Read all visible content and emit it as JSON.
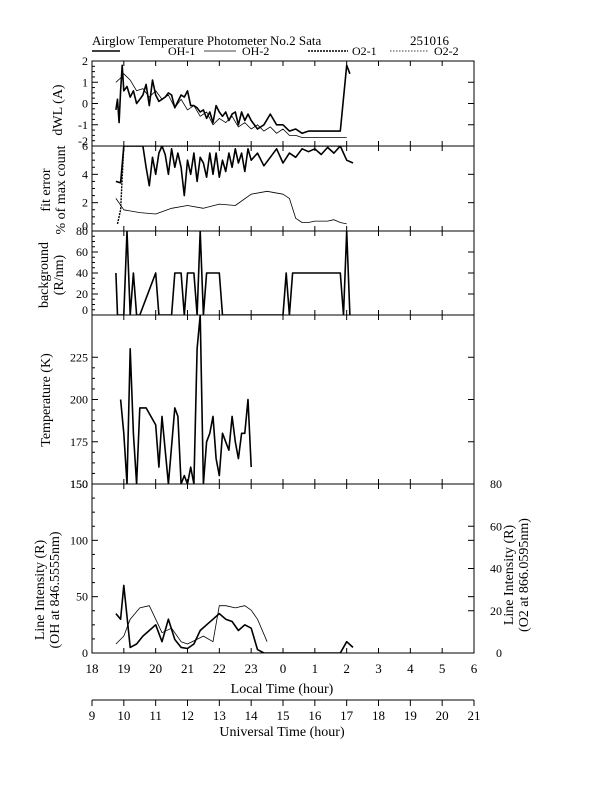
{
  "header": {
    "title": "Airglow Temperature Photometer No.2  Sata",
    "date_code": "251016",
    "legend": [
      {
        "label": "OH-1",
        "style": "solid-bold"
      },
      {
        "label": "OH-2",
        "style": "solid-thin"
      },
      {
        "label": "O2-1",
        "style": "dotted-bold"
      },
      {
        "label": "O2-2",
        "style": "dotted-thin"
      }
    ]
  },
  "chart_data": [
    {
      "type": "line",
      "ylabel": "dWL (A)",
      "ylim": [
        -2,
        2
      ],
      "yticks": [
        "-2",
        "-1",
        "0",
        "1",
        "2"
      ],
      "series": [
        {
          "name": "OH-1",
          "x": [
            18.75,
            18.8,
            18.85,
            18.9,
            18.95,
            19.0,
            19.1,
            19.2,
            19.3,
            19.4,
            19.5,
            19.6,
            19.7,
            19.8,
            19.9,
            20.0,
            20.1,
            20.2,
            20.3,
            20.4,
            20.5,
            20.6,
            20.7,
            20.8,
            20.9,
            21.0,
            21.1,
            21.2,
            21.3,
            21.4,
            21.5,
            21.6,
            21.7,
            21.8,
            21.9,
            22.0,
            22.1,
            22.2,
            22.3,
            22.4,
            22.5,
            22.6,
            22.7,
            22.8,
            22.9,
            23.0,
            23.2,
            23.4,
            23.6,
            23.8,
            24.0,
            24.2,
            24.4,
            24.6,
            24.8,
            25.0,
            25.2,
            25.4,
            25.6,
            25.8,
            26.0,
            26.1
          ],
          "y": [
            -0.3,
            0.2,
            -0.9,
            0.6,
            1.8,
            0.6,
            0.8,
            0.3,
            0.6,
            0.0,
            0.2,
            0.4,
            0.9,
            -0.1,
            1.1,
            0.4,
            0.1,
            0.2,
            0.3,
            0.5,
            0.4,
            -0.2,
            0.1,
            0.4,
            0.3,
            0.6,
            -0.1,
            -0.1,
            -0.2,
            -0.4,
            -0.3,
            -0.7,
            -0.4,
            -0.9,
            -0.1,
            -0.4,
            -0.6,
            -0.4,
            -0.8,
            -0.5,
            -0.4,
            -1.0,
            -0.4,
            -0.8,
            -0.5,
            -0.8,
            -1.2,
            -1.0,
            -0.5,
            -1.0,
            -1.0,
            -1.3,
            -1.2,
            -1.4,
            -1.3,
            -1.3,
            -1.3,
            -1.3,
            -1.3,
            -1.3,
            1.8,
            1.4
          ]
        },
        {
          "name": "OH-2",
          "x": [
            18.75,
            18.9,
            19.0,
            19.2,
            19.4,
            19.6,
            19.8,
            20.0,
            20.2,
            20.4,
            20.6,
            20.8,
            21.0,
            21.2,
            21.4,
            21.6,
            21.8,
            22.0,
            22.2,
            22.4,
            22.6,
            22.8,
            23.0,
            23.2,
            23.4,
            23.6,
            23.8,
            24.0,
            24.2,
            24.4,
            24.6,
            24.8,
            25.0,
            25.2,
            25.4,
            25.6,
            25.8,
            26.0
          ],
          "y": [
            1.0,
            1.2,
            1.4,
            1.1,
            0.6,
            0.7,
            0.3,
            0.6,
            0.2,
            0.4,
            -0.2,
            0.2,
            -0.3,
            -0.1,
            -0.6,
            -0.4,
            -1.0,
            -0.7,
            -0.9,
            -0.6,
            -1.1,
            -0.9,
            -1.2,
            -1.0,
            -1.3,
            -1.1,
            -1.4,
            -1.2,
            -1.5,
            -1.5,
            -1.6,
            -1.6,
            -1.6,
            -1.6,
            -1.6,
            -1.6,
            -1.6,
            -1.6
          ]
        }
      ]
    },
    {
      "type": "line",
      "ylabel": "fit error",
      "ylabel2": "% of max count",
      "ylim": [
        0,
        6
      ],
      "yticks": [
        "0",
        "2",
        "4",
        "6"
      ],
      "series": [
        {
          "name": "OH-1",
          "x": [
            18.75,
            18.9,
            19.0,
            19.1,
            19.2,
            19.3,
            19.4,
            19.5,
            19.6,
            19.7,
            19.8,
            19.9,
            20.0,
            20.1,
            20.2,
            20.3,
            20.4,
            20.5,
            20.6,
            20.7,
            20.8,
            20.9,
            21.0,
            21.1,
            21.2,
            21.3,
            21.4,
            21.5,
            21.6,
            21.7,
            21.8,
            21.9,
            22.0,
            22.1,
            22.2,
            22.3,
            22.4,
            22.5,
            22.6,
            22.7,
            22.8,
            22.9,
            23.0,
            23.2,
            23.4,
            23.6,
            23.8,
            24.0,
            24.2,
            24.4,
            24.6,
            24.8,
            25.0,
            25.2,
            25.4,
            25.6,
            25.8,
            26.0,
            26.2
          ],
          "y": [
            3.5,
            3.4,
            6.0,
            6.0,
            6.0,
            6.0,
            6.0,
            6.0,
            6.0,
            4.5,
            3.2,
            5.2,
            4.0,
            5.5,
            6.0,
            5.4,
            4.0,
            5.8,
            4.5,
            5.5,
            4.5,
            2.5,
            5.0,
            4.0,
            5.5,
            3.5,
            5.2,
            4.8,
            3.8,
            5.5,
            4.0,
            5.5,
            3.8,
            5.0,
            4.2,
            5.5,
            4.5,
            5.8,
            4.8,
            5.5,
            4.2,
            5.8,
            5.0,
            5.5,
            4.6,
            5.2,
            5.8,
            4.8,
            5.5,
            5.2,
            5.8,
            5.6,
            5.8,
            5.4,
            5.9,
            5.5,
            6.0,
            5.0,
            4.8
          ]
        },
        {
          "name": "OH-2",
          "x": [
            18.75,
            19.0,
            19.5,
            20.0,
            20.5,
            21.0,
            21.5,
            22.0,
            22.5,
            23.0,
            23.5,
            24.0,
            24.2,
            24.4,
            24.6,
            24.8,
            25.0,
            25.2,
            25.4,
            25.6,
            25.8,
            26.0
          ],
          "y": [
            2.3,
            1.5,
            1.3,
            1.2,
            1.6,
            1.8,
            1.6,
            1.9,
            1.8,
            2.6,
            2.8,
            2.6,
            2.3,
            0.9,
            0.6,
            0.6,
            0.7,
            0.7,
            0.7,
            0.8,
            0.6,
            0.5
          ]
        },
        {
          "name": "O2-1",
          "x": [
            18.8,
            18.9,
            19.0,
            19.5,
            20.0,
            21.0,
            22.0,
            23.0,
            24.0,
            25.0,
            26.0
          ],
          "y": [
            0.5,
            1.5,
            6.0,
            6.0,
            6.0,
            6.0,
            6.0,
            6.0,
            6.0,
            6.0,
            6.0
          ]
        }
      ]
    },
    {
      "type": "line",
      "ylabel": "background",
      "ylabel2": "(R/nm)",
      "ylim": [
        0,
        80
      ],
      "yticks": [
        "0",
        "20",
        "40",
        "60",
        "80"
      ],
      "series": [
        {
          "name": "OH-1",
          "x": [
            18.75,
            18.8,
            18.85,
            18.9,
            19.0,
            19.1,
            19.2,
            19.3,
            19.4,
            19.5,
            20.0,
            20.1,
            20.5,
            20.6,
            20.8,
            20.9,
            21.0,
            21.2,
            21.3,
            21.4,
            21.5,
            21.6,
            22.0,
            22.1,
            23.0,
            23.1,
            24.0,
            24.1,
            24.2,
            24.3,
            25.0,
            25.5,
            25.8,
            25.9,
            26.0,
            26.1
          ],
          "y": [
            40,
            0,
            0,
            0,
            0,
            80,
            0,
            40,
            0,
            0,
            40,
            0,
            0,
            40,
            40,
            0,
            40,
            40,
            0,
            80,
            0,
            40,
            40,
            0,
            0,
            0,
            0,
            40,
            0,
            40,
            40,
            40,
            40,
            0,
            80,
            0
          ]
        }
      ]
    },
    {
      "type": "line",
      "ylabel": "Temperature (K)",
      "ylim": [
        150,
        250
      ],
      "yticks": [
        "150",
        "175",
        "200",
        "225"
      ],
      "series": [
        {
          "name": "OH-1",
          "x": [
            18.9,
            19.0,
            19.1,
            19.2,
            19.3,
            19.4,
            19.5,
            19.6,
            19.7,
            20.0,
            20.1,
            20.2,
            20.4,
            20.6,
            20.7,
            20.8,
            20.9,
            21.0,
            21.1,
            21.2,
            21.3,
            21.4,
            21.5,
            21.6,
            21.7,
            21.8,
            21.9,
            22.0,
            22.1,
            22.2,
            22.3,
            22.4,
            22.5,
            22.6,
            22.7,
            22.8,
            22.9,
            23.0
          ],
          "y": [
            200,
            180,
            150,
            230,
            180,
            150,
            195,
            195,
            195,
            185,
            160,
            190,
            150,
            195,
            190,
            150,
            155,
            150,
            160,
            150,
            230,
            250,
            150,
            175,
            180,
            190,
            165,
            155,
            180,
            175,
            170,
            190,
            175,
            165,
            180,
            180,
            200,
            160
          ]
        }
      ]
    },
    {
      "type": "line",
      "ylabel": "Line Intensity (R)",
      "ylabel2": "(OH at 846.5555nm)",
      "y2label": "Line Intensity (R)",
      "y2label2": "(O2 at 866.0595nm)",
      "ylim": [
        0,
        150
      ],
      "y2lim": [
        0,
        80
      ],
      "yticks": [
        "0",
        "50",
        "100",
        "150"
      ],
      "y2ticks": [
        "0",
        "20",
        "40",
        "60",
        "80"
      ],
      "series": [
        {
          "name": "OH-1",
          "x": [
            18.75,
            18.9,
            19.0,
            19.2,
            19.4,
            19.6,
            19.8,
            20.0,
            20.2,
            20.4,
            20.6,
            20.8,
            21.0,
            21.2,
            21.4,
            21.6,
            21.8,
            22.0,
            22.2,
            22.4,
            22.6,
            22.8,
            23.0,
            23.2,
            23.4,
            23.6,
            23.8,
            24.0,
            24.2,
            24.4,
            24.6,
            24.8,
            25.0,
            25.2,
            25.4,
            25.6,
            25.8,
            26.0,
            26.2
          ],
          "y": [
            35,
            30,
            60,
            5,
            8,
            15,
            20,
            25,
            10,
            30,
            12,
            5,
            4,
            8,
            20,
            25,
            30,
            35,
            30,
            28,
            20,
            25,
            22,
            3,
            0,
            0,
            0,
            0,
            0,
            0,
            0,
            0,
            0,
            0,
            0,
            0,
            0,
            10,
            5
          ]
        },
        {
          "name": "OH-2",
          "x": [
            18.75,
            19.0,
            19.2,
            19.5,
            19.8,
            20.0,
            20.2,
            20.5,
            20.8,
            21.0,
            21.5,
            21.8,
            22.0,
            22.2,
            22.5,
            22.8,
            23.0,
            23.2,
            23.5
          ],
          "y": [
            8,
            15,
            30,
            40,
            42,
            30,
            18,
            22,
            10,
            8,
            15,
            10,
            42,
            42,
            40,
            42,
            38,
            30,
            10
          ]
        }
      ]
    }
  ],
  "x_axes": {
    "local": {
      "label": "Local Time (hour)",
      "range": [
        18,
        30
      ],
      "ticks": [
        "18",
        "19",
        "20",
        "21",
        "22",
        "23",
        "0",
        "1",
        "2",
        "3",
        "4",
        "5",
        "6"
      ]
    },
    "universal": {
      "label": "Universal Time (hour)",
      "range": [
        9,
        21
      ],
      "ticks": [
        "9",
        "10",
        "11",
        "12",
        "13",
        "14",
        "15",
        "16",
        "17",
        "18",
        "19",
        "20",
        "21"
      ]
    }
  }
}
